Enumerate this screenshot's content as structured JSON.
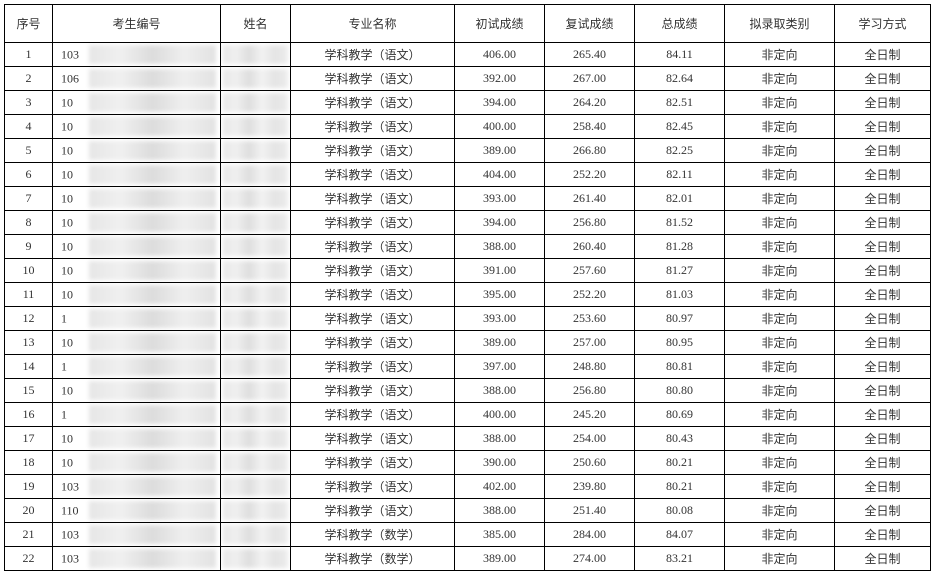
{
  "table": {
    "columns": [
      {
        "key": "seq",
        "label": "序号",
        "class": "col-seq"
      },
      {
        "key": "examId",
        "label": "考生编号",
        "class": "col-id"
      },
      {
        "key": "name",
        "label": "姓名",
        "class": "col-name"
      },
      {
        "key": "major",
        "label": "专业名称",
        "class": "col-major"
      },
      {
        "key": "prelim",
        "label": "初试成绩",
        "class": "col-prelim"
      },
      {
        "key": "retest",
        "label": "复试成绩",
        "class": "col-retest"
      },
      {
        "key": "total",
        "label": "总成绩",
        "class": "col-total"
      },
      {
        "key": "category",
        "label": "拟录取类别",
        "class": "col-category"
      },
      {
        "key": "mode",
        "label": "学习方式",
        "class": "col-mode"
      }
    ],
    "rows": [
      {
        "seq": "1",
        "idPrefix": "103",
        "major": "学科教学（语文）",
        "prelim": "406.00",
        "retest": "265.40",
        "total": "84.11",
        "category": "非定向",
        "mode": "全日制"
      },
      {
        "seq": "2",
        "idPrefix": "106",
        "major": "学科教学（语文）",
        "prelim": "392.00",
        "retest": "267.00",
        "total": "82.64",
        "category": "非定向",
        "mode": "全日制"
      },
      {
        "seq": "3",
        "idPrefix": "10",
        "major": "学科教学（语文）",
        "prelim": "394.00",
        "retest": "264.20",
        "total": "82.51",
        "category": "非定向",
        "mode": "全日制"
      },
      {
        "seq": "4",
        "idPrefix": "10",
        "major": "学科教学（语文）",
        "prelim": "400.00",
        "retest": "258.40",
        "total": "82.45",
        "category": "非定向",
        "mode": "全日制"
      },
      {
        "seq": "5",
        "idPrefix": "10",
        "major": "学科教学（语文）",
        "prelim": "389.00",
        "retest": "266.80",
        "total": "82.25",
        "category": "非定向",
        "mode": "全日制"
      },
      {
        "seq": "6",
        "idPrefix": "10",
        "major": "学科教学（语文）",
        "prelim": "404.00",
        "retest": "252.20",
        "total": "82.11",
        "category": "非定向",
        "mode": "全日制"
      },
      {
        "seq": "7",
        "idPrefix": "10",
        "major": "学科教学（语文）",
        "prelim": "393.00",
        "retest": "261.40",
        "total": "82.01",
        "category": "非定向",
        "mode": "全日制"
      },
      {
        "seq": "8",
        "idPrefix": "10",
        "major": "学科教学（语文）",
        "prelim": "394.00",
        "retest": "256.80",
        "total": "81.52",
        "category": "非定向",
        "mode": "全日制"
      },
      {
        "seq": "9",
        "idPrefix": "10",
        "major": "学科教学（语文）",
        "prelim": "388.00",
        "retest": "260.40",
        "total": "81.28",
        "category": "非定向",
        "mode": "全日制"
      },
      {
        "seq": "10",
        "idPrefix": "10",
        "major": "学科教学（语文）",
        "prelim": "391.00",
        "retest": "257.60",
        "total": "81.27",
        "category": "非定向",
        "mode": "全日制"
      },
      {
        "seq": "11",
        "idPrefix": "10",
        "major": "学科教学（语文）",
        "prelim": "395.00",
        "retest": "252.20",
        "total": "81.03",
        "category": "非定向",
        "mode": "全日制"
      },
      {
        "seq": "12",
        "idPrefix": "1",
        "major": "学科教学（语文）",
        "prelim": "393.00",
        "retest": "253.60",
        "total": "80.97",
        "category": "非定向",
        "mode": "全日制"
      },
      {
        "seq": "13",
        "idPrefix": "10",
        "major": "学科教学（语文）",
        "prelim": "389.00",
        "retest": "257.00",
        "total": "80.95",
        "category": "非定向",
        "mode": "全日制"
      },
      {
        "seq": "14",
        "idPrefix": "1",
        "major": "学科教学（语文）",
        "prelim": "397.00",
        "retest": "248.80",
        "total": "80.81",
        "category": "非定向",
        "mode": "全日制"
      },
      {
        "seq": "15",
        "idPrefix": "10",
        "major": "学科教学（语文）",
        "prelim": "388.00",
        "retest": "256.80",
        "total": "80.80",
        "category": "非定向",
        "mode": "全日制"
      },
      {
        "seq": "16",
        "idPrefix": "1",
        "major": "学科教学（语文）",
        "prelim": "400.00",
        "retest": "245.20",
        "total": "80.69",
        "category": "非定向",
        "mode": "全日制"
      },
      {
        "seq": "17",
        "idPrefix": "10",
        "major": "学科教学（语文）",
        "prelim": "388.00",
        "retest": "254.00",
        "total": "80.43",
        "category": "非定向",
        "mode": "全日制"
      },
      {
        "seq": "18",
        "idPrefix": "10",
        "major": "学科教学（语文）",
        "prelim": "390.00",
        "retest": "250.60",
        "total": "80.21",
        "category": "非定向",
        "mode": "全日制"
      },
      {
        "seq": "19",
        "idPrefix": "103",
        "major": "学科教学（语文）",
        "prelim": "402.00",
        "retest": "239.80",
        "total": "80.21",
        "category": "非定向",
        "mode": "全日制"
      },
      {
        "seq": "20",
        "idPrefix": "110",
        "major": "学科教学（语文）",
        "prelim": "388.00",
        "retest": "251.40",
        "total": "80.08",
        "category": "非定向",
        "mode": "全日制"
      },
      {
        "seq": "21",
        "idPrefix": "103",
        "major": "学科教学（数学）",
        "prelim": "385.00",
        "retest": "284.00",
        "total": "84.07",
        "category": "非定向",
        "mode": "全日制"
      },
      {
        "seq": "22",
        "idPrefix": "103",
        "major": "学科教学（数学）",
        "prelim": "389.00",
        "retest": "274.00",
        "total": "83.21",
        "category": "非定向",
        "mode": "全日制"
      }
    ],
    "styling": {
      "border_color": "#000000",
      "background_color": "#ffffff",
      "text_color": "#333333",
      "font_family": "SimSun",
      "header_fontsize": 12,
      "cell_fontsize": 12,
      "header_row_height": 38,
      "data_row_height": 24,
      "blur_fill": "#e8e8e8"
    }
  }
}
